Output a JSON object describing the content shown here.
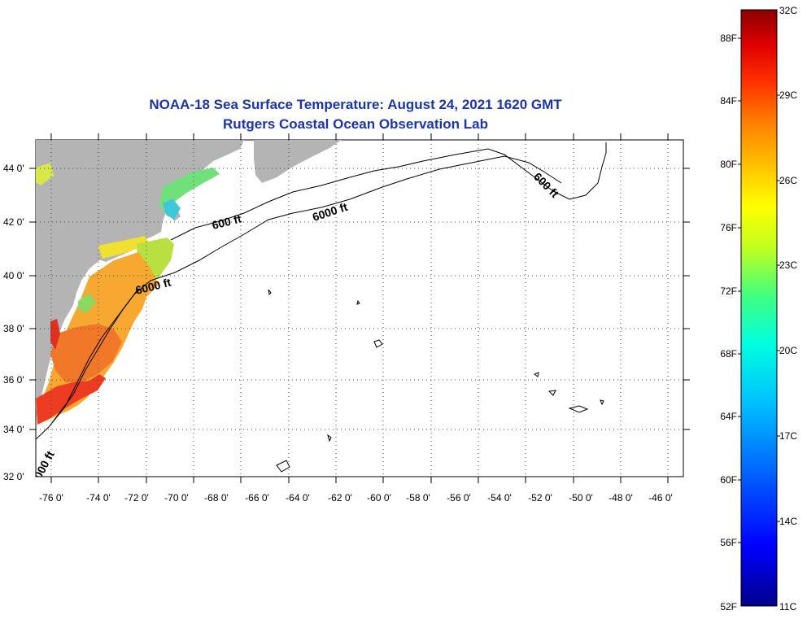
{
  "title": {
    "line1": "NOAA-18 Sea Surface Temperature:  August 24, 2021 1620 GMT",
    "line2": "Rutgers Coastal Ocean Observation Lab"
  },
  "map": {
    "lon_labels": [
      "-76 0'",
      "-74 0'",
      "-72 0'",
      "-70 0'",
      "-68 0'",
      "-66 0'",
      "-64 0'",
      "-62 0'",
      "-60 0'",
      "-58 0'",
      "-56 0'",
      "-54 0'",
      "-52 0'",
      "-50 0'",
      "-48 0'",
      "-46 0'"
    ],
    "lat_labels": [
      "44 0'",
      "42 0'",
      "40 0'",
      "38 0'",
      "36 0'",
      "34 0'",
      "32 0'"
    ],
    "contour_labels": [
      "600 ft",
      "6000 ft",
      "600 ft",
      "6000 ft",
      "600 ft",
      "000 ft"
    ],
    "land_color": "#b4b4b4",
    "ocean_color": "#ffffff"
  },
  "colorbar": {
    "fahrenheit": [
      "88F",
      "84F",
      "80F",
      "76F",
      "72F",
      "68F",
      "64F",
      "60F",
      "56F",
      "52F"
    ],
    "celsius": [
      "32C",
      "29C",
      "26C",
      "23C",
      "20C",
      "17C",
      "14C",
      "11C"
    ],
    "range_f": [
      52,
      91
    ],
    "stops": [
      "#00008b",
      "#0000ff",
      "#0060ff",
      "#00c0ff",
      "#00ffe0",
      "#40ff80",
      "#c0ff20",
      "#ffff00",
      "#ffc000",
      "#ff8000",
      "#ff3000",
      "#e00000",
      "#8b0000"
    ]
  }
}
